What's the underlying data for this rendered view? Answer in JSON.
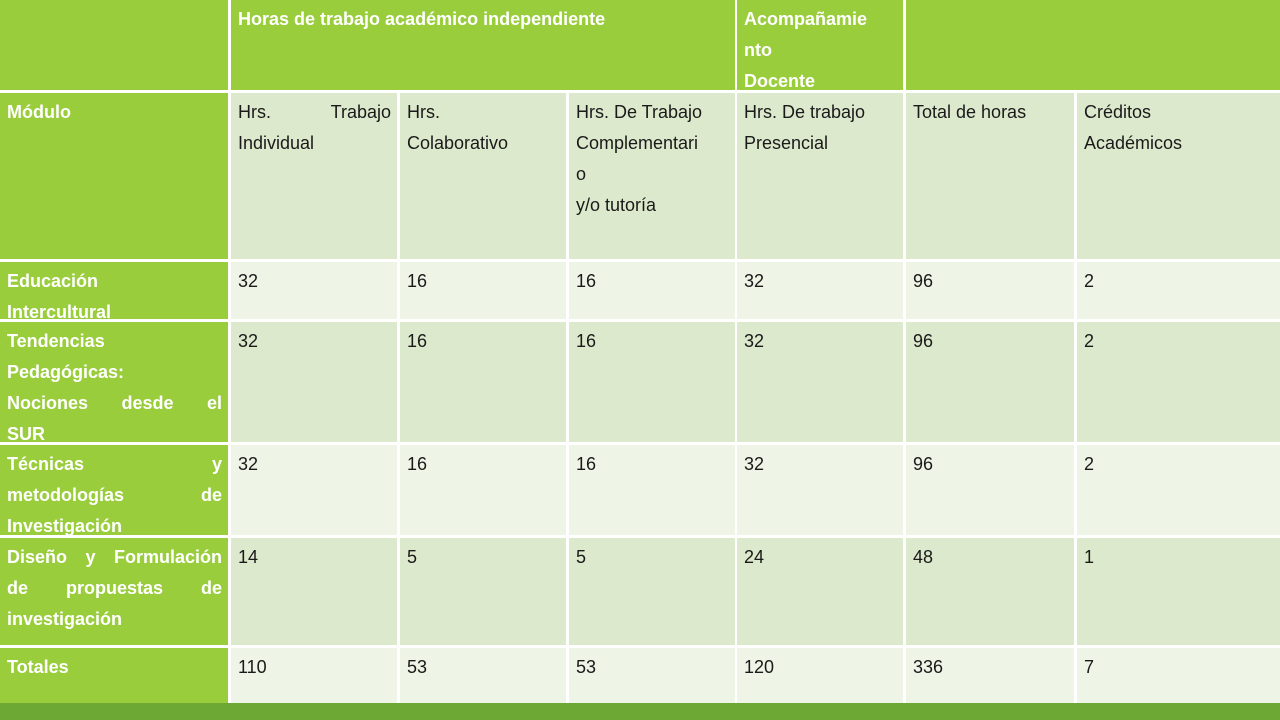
{
  "colors": {
    "green_col": "#9acd3c",
    "header_row": "#dde9cc",
    "light_row": "#eef4e6",
    "medium_row": "#dde9cc",
    "footer_bar": "#6ca833"
  },
  "group_header": {
    "independent": "Horas de trabajo académico independiente",
    "accompaniment_lines": [
      "Acompañamie",
      "nto",
      "Docente"
    ]
  },
  "columns": {
    "module": "Módulo",
    "c1_lines": [
      "Hrs. Trabajo",
      "Individual"
    ],
    "c2_lines": [
      "Hrs.",
      "Colaborativo"
    ],
    "c3_lines": [
      "Hrs. De Trabajo",
      "Complementari",
      "o",
      "y/o tutoría"
    ],
    "c4_lines": [
      "Hrs. De trabajo",
      "Presencial"
    ],
    "c5": "Total de horas",
    "c6_lines": [
      "Créditos",
      "Académicos"
    ]
  },
  "rows": [
    {
      "module_lines": [
        "Educación",
        "Intercultural"
      ],
      "values": [
        "32",
        "16",
        "16",
        "32",
        "96",
        "2"
      ]
    },
    {
      "module_lines": [
        "Tendencias",
        "Pedagógicas:",
        "Nociones desde el",
        "SUR"
      ],
      "values": [
        "32",
        "16",
        "16",
        "32",
        "96",
        "2"
      ]
    },
    {
      "module_lines": [
        "Técnicas y",
        "metodologías de",
        "Investigación"
      ],
      "values": [
        "32",
        "16",
        "16",
        "32",
        "96",
        "2"
      ]
    },
    {
      "module_lines": [
        "Diseño y Formulación",
        "de propuestas de",
        "investigación"
      ],
      "values": [
        "14",
        "5",
        "5",
        "24",
        "48",
        "1"
      ]
    }
  ],
  "totals": {
    "label": "Totales",
    "values": [
      "110",
      "53",
      "53",
      "120",
      "336",
      "7"
    ]
  }
}
